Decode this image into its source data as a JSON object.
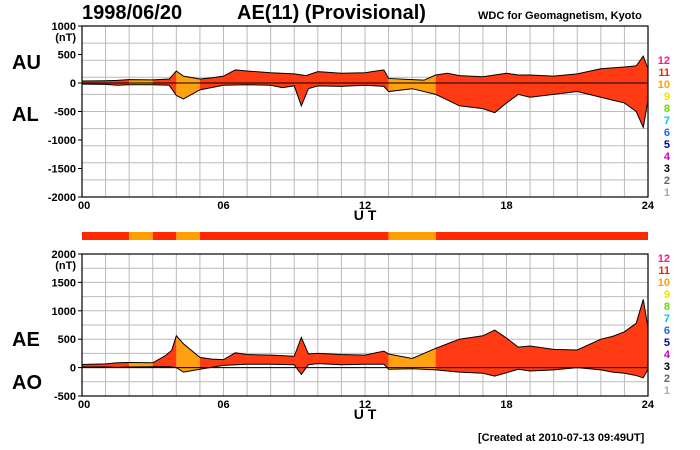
{
  "header": {
    "date": "1998/06/20",
    "title": "AE(11) (Provisional)",
    "credit": "WDC for Geomagnetism, Kyoto"
  },
  "footer": {
    "created": "[Created at 2010-07-13 09:49UT]"
  },
  "colors": {
    "level_11": "#ff2a00",
    "level_10": "#ffa000",
    "level_12": "#ff007f",
    "fill_primary": "#ff3b14",
    "fill_secondary": "#ffa010"
  },
  "legend_levels": [
    {
      "label": "12",
      "color": "#ff1493"
    },
    {
      "label": "11",
      "color": "#ff2200"
    },
    {
      "label": "10",
      "color": "#ffa000"
    },
    {
      "label": "9",
      "color": "#e8e800"
    },
    {
      "label": "8",
      "color": "#66dd00"
    },
    {
      "label": "7",
      "color": "#00c8dc"
    },
    {
      "label": "6",
      "color": "#1e64ff"
    },
    {
      "label": "5",
      "color": "#0000aa"
    },
    {
      "label": "4",
      "color": "#cc00cc"
    },
    {
      "label": "3",
      "color": "#000000"
    },
    {
      "label": "2",
      "color": "#666666"
    },
    {
      "label": "1",
      "color": "#aaaaaa"
    }
  ],
  "chart_data": [
    {
      "type": "area",
      "series": [
        {
          "name": "AU"
        },
        {
          "name": "AL"
        }
      ],
      "unit": "(nT)",
      "xlabel": "U T",
      "x_range": [
        0,
        24
      ],
      "x_ticks": [
        "00",
        "06",
        "12",
        "18",
        "24"
      ],
      "ylim": [
        -2000,
        1000
      ],
      "y_ticks": [
        1000,
        500,
        0,
        -500,
        -1000,
        -1500,
        -2000
      ],
      "data_level_segments": [
        {
          "start": 0,
          "end": 2,
          "level": 11
        },
        {
          "start": 2,
          "end": 3,
          "level": 10
        },
        {
          "start": 3,
          "end": 4,
          "level": 11
        },
        {
          "start": 4,
          "end": 5,
          "level": 10
        },
        {
          "start": 5,
          "end": 13,
          "level": 11
        },
        {
          "start": 13,
          "end": 15,
          "level": 10
        },
        {
          "start": 15,
          "end": 24,
          "level": 11
        }
      ],
      "upper": [
        [
          0,
          35
        ],
        [
          1,
          40
        ],
        [
          1.5,
          45
        ],
        [
          2,
          60
        ],
        [
          3,
          55
        ],
        [
          3.7,
          70
        ],
        [
          4,
          210
        ],
        [
          4.3,
          120
        ],
        [
          5,
          70
        ],
        [
          5.5,
          90
        ],
        [
          6,
          120
        ],
        [
          6.5,
          230
        ],
        [
          7,
          210
        ],
        [
          8,
          180
        ],
        [
          9,
          160
        ],
        [
          9.5,
          130
        ],
        [
          10,
          200
        ],
        [
          11,
          170
        ],
        [
          12,
          180
        ],
        [
          12.8,
          230
        ],
        [
          13,
          80
        ],
        [
          14,
          60
        ],
        [
          14.5,
          50
        ],
        [
          15,
          140
        ],
        [
          15.5,
          170
        ],
        [
          16,
          130
        ],
        [
          17,
          110
        ],
        [
          17.5,
          140
        ],
        [
          18,
          170
        ],
        [
          18.5,
          140
        ],
        [
          19,
          140
        ],
        [
          20,
          120
        ],
        [
          21,
          160
        ],
        [
          22,
          250
        ],
        [
          23,
          280
        ],
        [
          23.5,
          300
        ],
        [
          23.8,
          470
        ],
        [
          24,
          250
        ]
      ],
      "lower": [
        [
          0,
          -20
        ],
        [
          1,
          -25
        ],
        [
          1.5,
          -40
        ],
        [
          2,
          -30
        ],
        [
          3,
          -30
        ],
        [
          3.7,
          -40
        ],
        [
          4,
          -220
        ],
        [
          4.3,
          -280
        ],
        [
          5,
          -120
        ],
        [
          6,
          -40
        ],
        [
          7,
          -30
        ],
        [
          8,
          -40
        ],
        [
          8.5,
          -80
        ],
        [
          9,
          -50
        ],
        [
          9.3,
          -400
        ],
        [
          9.6,
          -100
        ],
        [
          10,
          -50
        ],
        [
          11,
          -60
        ],
        [
          12,
          -40
        ],
        [
          12.8,
          -60
        ],
        [
          13,
          -150
        ],
        [
          14,
          -100
        ],
        [
          15,
          -200
        ],
        [
          15.5,
          -300
        ],
        [
          16,
          -400
        ],
        [
          17,
          -450
        ],
        [
          17.5,
          -520
        ],
        [
          18,
          -350
        ],
        [
          18.5,
          -200
        ],
        [
          19,
          -250
        ],
        [
          20,
          -200
        ],
        [
          21,
          -150
        ],
        [
          22,
          -250
        ],
        [
          22.5,
          -300
        ],
        [
          23,
          -350
        ],
        [
          23.5,
          -500
        ],
        [
          23.8,
          -780
        ],
        [
          24,
          -300
        ]
      ]
    },
    {
      "type": "area",
      "series": [
        {
          "name": "AE"
        },
        {
          "name": "AO"
        }
      ],
      "unit": "(nT)",
      "xlabel": "U T",
      "x_range": [
        0,
        24
      ],
      "x_ticks": [
        "00",
        "06",
        "12",
        "18",
        "24"
      ],
      "ylim": [
        -500,
        2000
      ],
      "y_ticks": [
        2000,
        1500,
        1000,
        500,
        0,
        -500
      ],
      "upper": [
        [
          0,
          55
        ],
        [
          1,
          65
        ],
        [
          1.5,
          85
        ],
        [
          2,
          90
        ],
        [
          3,
          85
        ],
        [
          3.5,
          200
        ],
        [
          3.8,
          300
        ],
        [
          4,
          560
        ],
        [
          4.3,
          420
        ],
        [
          5,
          180
        ],
        [
          5.5,
          150
        ],
        [
          6,
          140
        ],
        [
          6.5,
          260
        ],
        [
          7,
          230
        ],
        [
          8,
          220
        ],
        [
          9,
          200
        ],
        [
          9.3,
          530
        ],
        [
          9.6,
          240
        ],
        [
          10,
          250
        ],
        [
          11,
          230
        ],
        [
          12,
          220
        ],
        [
          12.8,
          290
        ],
        [
          13,
          240
        ],
        [
          14,
          160
        ],
        [
          15,
          340
        ],
        [
          15.5,
          420
        ],
        [
          16,
          500
        ],
        [
          17,
          560
        ],
        [
          17.5,
          660
        ],
        [
          18,
          520
        ],
        [
          18.5,
          360
        ],
        [
          19,
          380
        ],
        [
          20,
          320
        ],
        [
          21,
          310
        ],
        [
          22,
          500
        ],
        [
          22.5,
          550
        ],
        [
          23,
          630
        ],
        [
          23.5,
          780
        ],
        [
          23.8,
          1200
        ],
        [
          24,
          700
        ]
      ],
      "lower": [
        [
          0,
          10
        ],
        [
          1,
          10
        ],
        [
          1.5,
          5
        ],
        [
          2,
          10
        ],
        [
          3,
          15
        ],
        [
          3.7,
          15
        ],
        [
          4,
          0
        ],
        [
          4.3,
          -80
        ],
        [
          5,
          -30
        ],
        [
          6,
          40
        ],
        [
          7,
          60
        ],
        [
          8,
          60
        ],
        [
          9,
          50
        ],
        [
          9.3,
          -120
        ],
        [
          9.6,
          50
        ],
        [
          10,
          70
        ],
        [
          11,
          50
        ],
        [
          12,
          60
        ],
        [
          12.8,
          60
        ],
        [
          13,
          -30
        ],
        [
          14,
          -20
        ],
        [
          15,
          -40
        ],
        [
          15.5,
          -60
        ],
        [
          16,
          -80
        ],
        [
          17,
          -100
        ],
        [
          17.5,
          -150
        ],
        [
          18,
          -90
        ],
        [
          18.5,
          -30
        ],
        [
          19,
          -60
        ],
        [
          20,
          -40
        ],
        [
          21,
          0
        ],
        [
          22,
          -40
        ],
        [
          22.5,
          -80
        ],
        [
          23,
          -100
        ],
        [
          23.5,
          -140
        ],
        [
          23.8,
          -180
        ],
        [
          24,
          -30
        ]
      ]
    }
  ],
  "panel_labels": {
    "top_upper": "AU",
    "top_lower": "AL",
    "bottom_upper": "AE",
    "bottom_lower": "AO"
  }
}
